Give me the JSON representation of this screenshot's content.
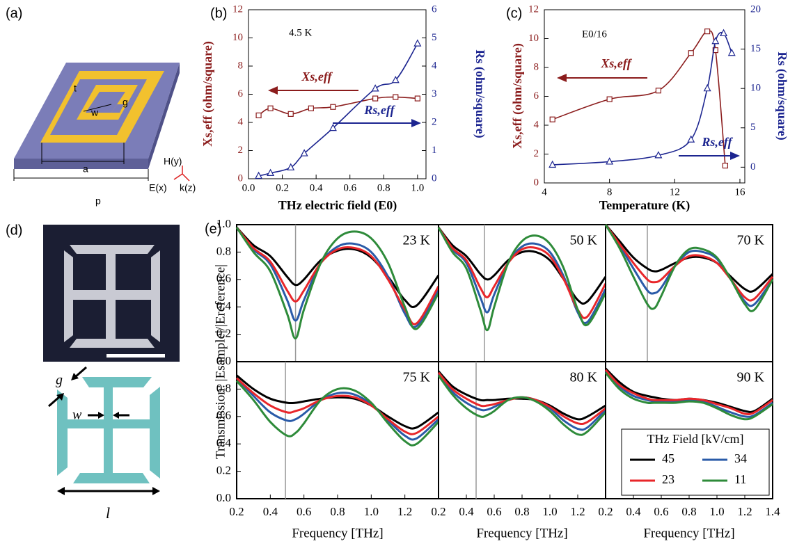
{
  "diagrams": [
    {
      "label": "(a)",
      "texts": [
        "t",
        "g",
        "w",
        "a",
        "p",
        "H(y)",
        "E(x)",
        "k(z)"
      ]
    },
    {
      "label": "(d)",
      "texts": [
        "g",
        "w",
        "l"
      ]
    }
  ],
  "chart_data": [
    {
      "type": "line",
      "panel": "(b)",
      "annotation": "4.5 K",
      "xlabel": "THz electric field (E0)",
      "ylabel": "Xs,eff (ohm/square)",
      "y2label": "Rs (ohm/square)",
      "xlim": [
        0,
        1.05
      ],
      "xticks": [
        {
          "value": 0,
          "label": "0.0"
        },
        0.2,
        0.4,
        0.6,
        0.8,
        {
          "value": 1,
          "label": "1.0"
        }
      ],
      "ylim": [
        0,
        12
      ],
      "yticks": [
        0,
        2,
        4,
        6,
        8,
        10,
        12
      ],
      "y2lim": [
        0,
        6
      ],
      "y2ticks": [
        0,
        1,
        2,
        3,
        4,
        5,
        6
      ],
      "series": [
        {
          "name": "Xs,eff",
          "color": "#8b1c1c",
          "marker": "square",
          "x": [
            0.06,
            0.13,
            0.25,
            0.37,
            0.5,
            0.75,
            0.87,
            1.0
          ],
          "values": [
            4.5,
            5.0,
            4.6,
            5.0,
            5.1,
            5.7,
            5.8,
            5.7
          ]
        },
        {
          "name": "Rs,eff",
          "color": "#1c2590",
          "marker": "triangle",
          "axis": "y2",
          "x": [
            0.06,
            0.13,
            0.25,
            0.33,
            0.5,
            0.75,
            0.87,
            1.0
          ],
          "values": [
            0.1,
            0.2,
            0.4,
            0.9,
            1.8,
            3.2,
            3.5,
            4.8
          ]
        }
      ]
    },
    {
      "type": "line",
      "panel": "(c)",
      "annotation": "E0/16",
      "xlabel": "Temperature (K)",
      "ylabel": "Xs,eff (ohm/square)",
      "y2label": "Rs (ohm/square)",
      "xlim": [
        4,
        16.3
      ],
      "xticks": [
        4,
        8,
        12,
        16
      ],
      "ylim": [
        0,
        12
      ],
      "yticks": [
        0,
        2,
        4,
        6,
        8,
        10,
        12
      ],
      "y2lim": [
        -2,
        20
      ],
      "y2ticks": [
        0,
        5,
        10,
        15,
        20
      ],
      "series": [
        {
          "name": "Xs,eff",
          "color": "#8b1c1c",
          "marker": "square",
          "x": [
            4.5,
            8,
            11,
            13,
            14,
            14.5,
            15.1
          ],
          "values": [
            4.4,
            5.8,
            6.4,
            9.0,
            10.5,
            9.2,
            1.2
          ]
        },
        {
          "name": "Rs,eff",
          "color": "#1c2590",
          "marker": "triangle",
          "axis": "y2",
          "x": [
            4.5,
            8,
            11,
            13,
            14,
            14.5,
            15,
            15.5
          ],
          "values": [
            0.3,
            0.7,
            1.5,
            3.5,
            10,
            16,
            17,
            14.5
          ]
        }
      ]
    },
    {
      "type": "line",
      "panel": "(e)",
      "title": "23 K",
      "ylabel": "Transmission: |Esample|/|Ereference|",
      "x": [
        0.2,
        0.3,
        0.4,
        0.5,
        0.55,
        0.6,
        0.7,
        0.8,
        0.9,
        1.0,
        1.1,
        1.2,
        1.27,
        1.4
      ],
      "xlim": [
        0.2,
        1.4
      ],
      "ylim": [
        0,
        1
      ],
      "yticks": [
        {
          "value": 0,
          "label": "0.0"
        },
        0.2,
        0.4,
        0.6,
        0.8,
        {
          "value": 1,
          "label": "1.0"
        }
      ],
      "vline": 0.55,
      "series": [
        {
          "color": "#000000",
          "values": [
            0.98,
            0.85,
            0.77,
            0.62,
            0.56,
            0.6,
            0.74,
            0.81,
            0.82,
            0.76,
            0.62,
            0.45,
            0.41,
            0.63
          ]
        },
        {
          "color": "#2a5ba8",
          "values": [
            0.98,
            0.82,
            0.71,
            0.45,
            0.3,
            0.45,
            0.72,
            0.84,
            0.86,
            0.8,
            0.62,
            0.35,
            0.26,
            0.52
          ]
        },
        {
          "color": "#e8262a",
          "values": [
            0.98,
            0.83,
            0.73,
            0.52,
            0.44,
            0.52,
            0.72,
            0.82,
            0.83,
            0.77,
            0.6,
            0.38,
            0.28,
            0.55
          ]
        },
        {
          "color": "#2e8b3a",
          "values": [
            0.98,
            0.8,
            0.66,
            0.35,
            0.17,
            0.38,
            0.72,
            0.9,
            0.95,
            0.9,
            0.72,
            0.4,
            0.24,
            0.5
          ]
        }
      ]
    },
    {
      "type": "line",
      "title": "50 K",
      "x": [
        0.2,
        0.3,
        0.4,
        0.5,
        0.55,
        0.6,
        0.7,
        0.8,
        0.9,
        1.0,
        1.1,
        1.2,
        1.27,
        1.4
      ],
      "xlim": [
        0.2,
        1.4
      ],
      "ylim": [
        0,
        1
      ],
      "vline": 0.53,
      "series": [
        {
          "color": "#000000",
          "values": [
            0.98,
            0.85,
            0.77,
            0.64,
            0.6,
            0.63,
            0.74,
            0.8,
            0.8,
            0.74,
            0.6,
            0.45,
            0.44,
            0.62
          ]
        },
        {
          "color": "#2a5ba8",
          "values": [
            0.98,
            0.82,
            0.72,
            0.47,
            0.36,
            0.49,
            0.72,
            0.84,
            0.86,
            0.8,
            0.62,
            0.36,
            0.29,
            0.53
          ]
        },
        {
          "color": "#e8262a",
          "values": [
            0.98,
            0.83,
            0.74,
            0.54,
            0.47,
            0.55,
            0.72,
            0.82,
            0.83,
            0.77,
            0.6,
            0.38,
            0.33,
            0.57
          ]
        },
        {
          "color": "#2e8b3a",
          "values": [
            0.98,
            0.8,
            0.68,
            0.38,
            0.23,
            0.4,
            0.72,
            0.88,
            0.92,
            0.86,
            0.68,
            0.38,
            0.27,
            0.5
          ]
        }
      ]
    },
    {
      "type": "line",
      "title": "70 K",
      "x": [
        0.2,
        0.3,
        0.4,
        0.5,
        0.55,
        0.6,
        0.7,
        0.8,
        0.9,
        1.0,
        1.1,
        1.2,
        1.27,
        1.4
      ],
      "xlim": [
        0.2,
        1.4
      ],
      "ylim": [
        0,
        1
      ],
      "vline": 0.5,
      "series": [
        {
          "color": "#000000",
          "values": [
            1.0,
            0.88,
            0.76,
            0.68,
            0.66,
            0.67,
            0.72,
            0.76,
            0.76,
            0.72,
            0.62,
            0.53,
            0.52,
            0.64
          ]
        },
        {
          "color": "#2a5ba8",
          "values": [
            1.0,
            0.85,
            0.68,
            0.52,
            0.5,
            0.54,
            0.7,
            0.8,
            0.8,
            0.75,
            0.6,
            0.44,
            0.42,
            0.6
          ]
        },
        {
          "color": "#e8262a",
          "values": [
            1.0,
            0.86,
            0.72,
            0.6,
            0.58,
            0.6,
            0.7,
            0.77,
            0.77,
            0.72,
            0.6,
            0.47,
            0.46,
            0.62
          ]
        },
        {
          "color": "#2e8b3a",
          "values": [
            1.0,
            0.83,
            0.62,
            0.42,
            0.39,
            0.48,
            0.7,
            0.82,
            0.82,
            0.76,
            0.6,
            0.42,
            0.38,
            0.6
          ]
        }
      ]
    },
    {
      "type": "line",
      "title": "75 K",
      "xlabel": "Frequency [THz]",
      "x": [
        0.2,
        0.3,
        0.4,
        0.5,
        0.55,
        0.6,
        0.7,
        0.8,
        0.9,
        1.0,
        1.1,
        1.2,
        1.27,
        1.4
      ],
      "xlim": [
        0.2,
        1.4
      ],
      "ylim": [
        0,
        1
      ],
      "xticks": [
        0.2,
        0.4,
        0.6,
        0.8,
        {
          "value": 1,
          "label": "1.0"
        },
        1.2
      ],
      "yticks": [
        {
          "value": 0,
          "label": "0.0"
        },
        0.2,
        0.4,
        0.6,
        0.8
      ],
      "vline": 0.49,
      "series": [
        {
          "color": "#000000",
          "values": [
            0.9,
            0.8,
            0.73,
            0.7,
            0.7,
            0.71,
            0.73,
            0.74,
            0.73,
            0.68,
            0.6,
            0.53,
            0.52,
            0.63
          ]
        },
        {
          "color": "#2a5ba8",
          "values": [
            0.88,
            0.75,
            0.63,
            0.57,
            0.58,
            0.62,
            0.72,
            0.77,
            0.76,
            0.69,
            0.57,
            0.46,
            0.44,
            0.58
          ]
        },
        {
          "color": "#e8262a",
          "values": [
            0.88,
            0.77,
            0.68,
            0.63,
            0.64,
            0.66,
            0.72,
            0.75,
            0.74,
            0.68,
            0.58,
            0.49,
            0.48,
            0.6
          ]
        },
        {
          "color": "#2e8b3a",
          "values": [
            0.86,
            0.72,
            0.56,
            0.46,
            0.48,
            0.55,
            0.72,
            0.8,
            0.79,
            0.7,
            0.55,
            0.42,
            0.4,
            0.56
          ]
        }
      ]
    },
    {
      "type": "line",
      "title": "80 K",
      "xlabel": "Frequency [THz]",
      "x": [
        0.2,
        0.3,
        0.4,
        0.5,
        0.55,
        0.6,
        0.7,
        0.8,
        0.9,
        1.0,
        1.1,
        1.2,
        1.27,
        1.4
      ],
      "xlim": [
        0.2,
        1.4
      ],
      "ylim": [
        0,
        1
      ],
      "xticks": [
        0.2,
        0.4,
        0.6,
        0.8,
        {
          "value": 1,
          "label": "1.0"
        },
        1.2
      ],
      "vline": 0.47,
      "series": [
        {
          "color": "#000000",
          "values": [
            0.93,
            0.82,
            0.76,
            0.72,
            0.72,
            0.72,
            0.73,
            0.73,
            0.72,
            0.68,
            0.62,
            0.58,
            0.6,
            0.68
          ]
        },
        {
          "color": "#2a5ba8",
          "values": [
            0.91,
            0.78,
            0.7,
            0.65,
            0.65,
            0.67,
            0.72,
            0.74,
            0.72,
            0.66,
            0.57,
            0.51,
            0.52,
            0.65
          ]
        },
        {
          "color": "#e8262a",
          "values": [
            0.92,
            0.8,
            0.73,
            0.68,
            0.68,
            0.69,
            0.72,
            0.74,
            0.72,
            0.67,
            0.6,
            0.55,
            0.56,
            0.66
          ]
        },
        {
          "color": "#2e8b3a",
          "values": [
            0.9,
            0.76,
            0.66,
            0.6,
            0.61,
            0.64,
            0.72,
            0.74,
            0.71,
            0.64,
            0.54,
            0.47,
            0.49,
            0.63
          ]
        }
      ]
    },
    {
      "type": "line",
      "title": "90 K",
      "xlabel": "Frequency [THz]",
      "legend_title": "THz Field [kV/cm]",
      "x": [
        0.2,
        0.3,
        0.4,
        0.5,
        0.55,
        0.6,
        0.7,
        0.8,
        0.9,
        1.0,
        1.1,
        1.2,
        1.27,
        1.4
      ],
      "xlim": [
        0.2,
        1.4
      ],
      "ylim": [
        0,
        1
      ],
      "xticks": [
        0.2,
        0.4,
        0.6,
        0.8,
        {
          "value": 1,
          "label": "1.0"
        },
        1.2,
        1.4
      ],
      "series": [
        {
          "name": "45",
          "color": "#000000",
          "values": [
            0.95,
            0.85,
            0.78,
            0.75,
            0.74,
            0.73,
            0.72,
            0.73,
            0.72,
            0.7,
            0.67,
            0.64,
            0.64,
            0.73
          ]
        },
        {
          "name": "34",
          "color": "#2a5ba8",
          "values": [
            0.93,
            0.82,
            0.75,
            0.72,
            0.71,
            0.71,
            0.71,
            0.72,
            0.71,
            0.67,
            0.63,
            0.6,
            0.61,
            0.7
          ]
        },
        {
          "name": "23",
          "color": "#e8262a",
          "values": [
            0.94,
            0.83,
            0.77,
            0.73,
            0.72,
            0.72,
            0.72,
            0.73,
            0.72,
            0.69,
            0.66,
            0.62,
            0.63,
            0.72
          ]
        },
        {
          "name": "11",
          "color": "#2e8b3a",
          "values": [
            0.92,
            0.8,
            0.73,
            0.7,
            0.7,
            0.7,
            0.7,
            0.71,
            0.7,
            0.66,
            0.61,
            0.58,
            0.6,
            0.69
          ]
        }
      ]
    }
  ]
}
